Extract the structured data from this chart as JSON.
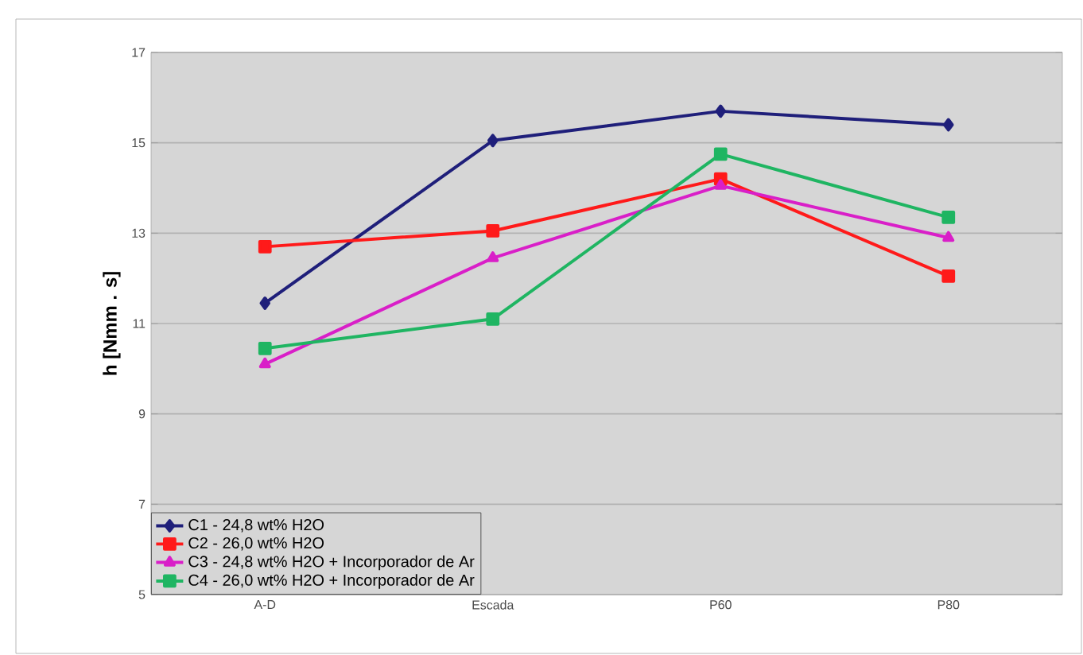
{
  "chart_data": {
    "type": "line",
    "ylabel": "h [Nmm . s]",
    "categories": [
      "A-D",
      "Escada",
      "P60",
      "P80"
    ],
    "series": [
      {
        "name": "C1 - 24,8 wt% H2O",
        "color": "#1f1f7a",
        "marker": "diamond",
        "values": [
          11.45,
          15.05,
          15.7,
          15.4
        ]
      },
      {
        "name": "C2 - 26,0 wt% H2O",
        "color": "#ff1a1a",
        "marker": "square",
        "values": [
          12.7,
          13.05,
          14.2,
          12.05
        ]
      },
      {
        "name": "C3 - 24,8 wt% H2O + Incorporador de Ar",
        "color": "#d91fc8",
        "marker": "triangle",
        "values": [
          10.1,
          12.45,
          14.05,
          12.9
        ]
      },
      {
        "name": "C4 - 26,0 wt% H2O + Incorporador de Ar",
        "color": "#1fb562",
        "marker": "square",
        "values": [
          10.45,
          11.1,
          14.75,
          13.35
        ]
      }
    ],
    "ylim": [
      5,
      17
    ],
    "yticks": [
      5,
      7,
      9,
      11,
      13,
      15,
      17
    ],
    "grid": "y",
    "legend": "bottom left",
    "line_style": "solid"
  }
}
